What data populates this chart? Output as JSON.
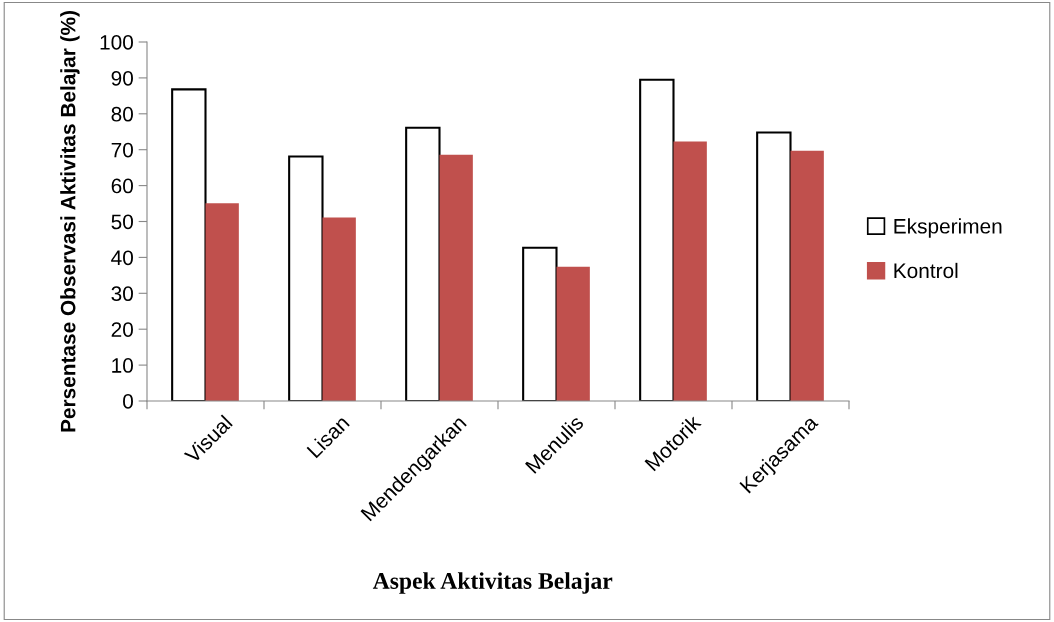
{
  "chart_data": {
    "type": "bar",
    "xlabel": "Aspek Aktivitas Belajar",
    "ylabel": "Persentase Observasi Aktivitas Belajar (%)",
    "categories": [
      "Visual",
      "Lisan",
      "Mendengarkan",
      "Menulis",
      "Motorik",
      "Kerjasama"
    ],
    "series": [
      {
        "name": "Eksperimen",
        "color": "#ffffff",
        "values": [
          86.8,
          68.1,
          76.1,
          42.7,
          89.5,
          74.8
        ]
      },
      {
        "name": "Kontrol",
        "color": "#c0504d",
        "values": [
          55.1,
          51.1,
          68.6,
          37.4,
          72.3,
          69.7
        ]
      }
    ],
    "ylim": [
      0,
      100
    ],
    "yticks": [
      0,
      10,
      20,
      30,
      40,
      50,
      60,
      70,
      80,
      90,
      100
    ],
    "grid": false,
    "legend": "right"
  }
}
